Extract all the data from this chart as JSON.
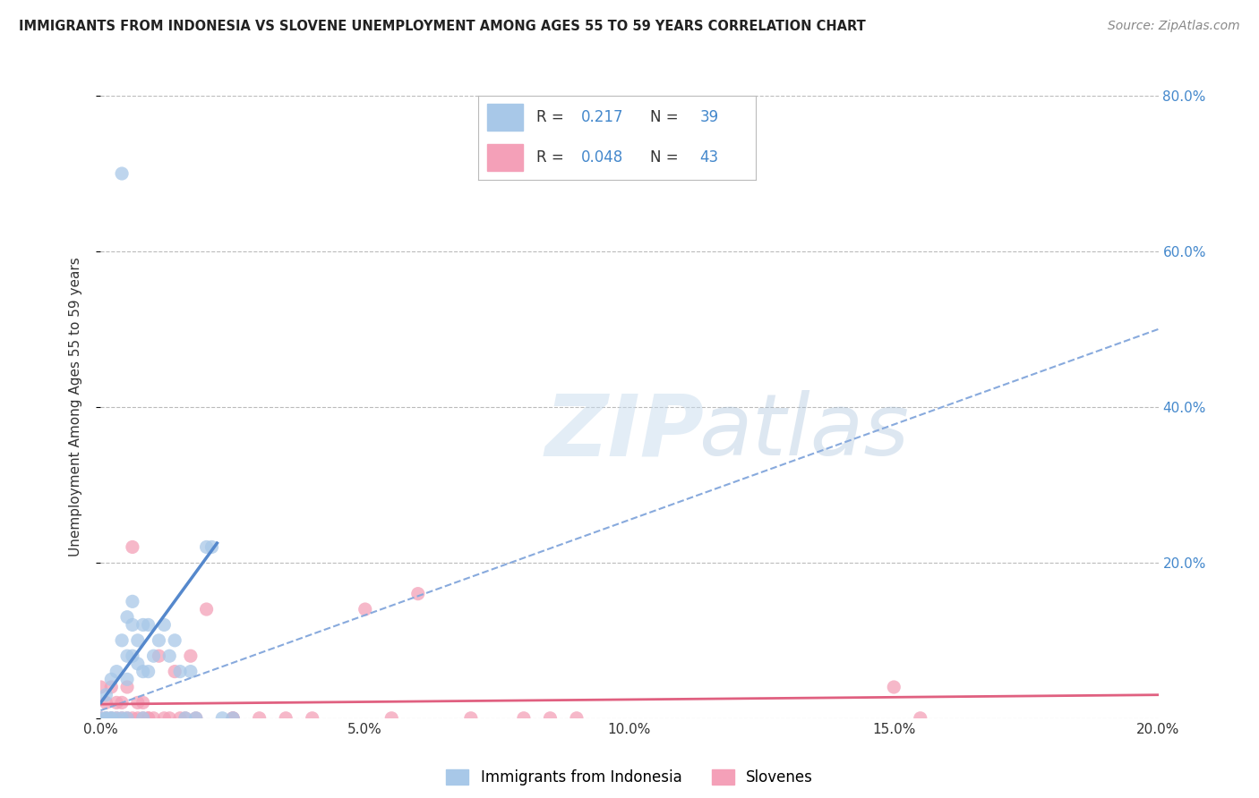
{
  "title": "IMMIGRANTS FROM INDONESIA VS SLOVENE UNEMPLOYMENT AMONG AGES 55 TO 59 YEARS CORRELATION CHART",
  "source": "Source: ZipAtlas.com",
  "ylabel": "Unemployment Among Ages 55 to 59 years",
  "xlim": [
    0.0,
    0.2
  ],
  "ylim": [
    0.0,
    0.8
  ],
  "xtick_vals": [
    0.0,
    0.05,
    0.1,
    0.15,
    0.2
  ],
  "ytick_vals": [
    0.0,
    0.2,
    0.4,
    0.6,
    0.8
  ],
  "ytick_labels_right": [
    "",
    "20.0%",
    "40.0%",
    "60.0%",
    "80.0%"
  ],
  "color_blue": "#A8C8E8",
  "color_pink": "#F4A0B8",
  "line_blue": "#5588CC",
  "line_blue_dash": "#88AADD",
  "line_pink": "#E06080",
  "background_color": "#FFFFFF",
  "grid_color": "#BBBBBB",
  "title_color": "#222222",
  "source_color": "#888888",
  "legend_text_color": "#4488CC",
  "legend_label_color": "#333333",
  "blue_scatter_x": [
    0.001,
    0.001,
    0.002,
    0.002,
    0.003,
    0.003,
    0.004,
    0.004,
    0.005,
    0.005,
    0.005,
    0.006,
    0.006,
    0.006,
    0.007,
    0.007,
    0.008,
    0.008,
    0.008,
    0.009,
    0.009,
    0.01,
    0.011,
    0.012,
    0.013,
    0.014,
    0.015,
    0.016,
    0.017,
    0.018,
    0.02,
    0.021,
    0.023,
    0.025,
    0.004,
    0.005,
    0.002,
    0.001,
    0.0
  ],
  "blue_scatter_y": [
    0.0,
    0.03,
    0.0,
    0.05,
    0.0,
    0.06,
    0.0,
    0.1,
    0.05,
    0.08,
    0.13,
    0.08,
    0.12,
    0.15,
    0.07,
    0.1,
    0.0,
    0.06,
    0.12,
    0.06,
    0.12,
    0.08,
    0.1,
    0.12,
    0.08,
    0.1,
    0.06,
    0.0,
    0.06,
    0.0,
    0.22,
    0.22,
    0.0,
    0.0,
    0.7,
    0.0,
    0.0,
    0.0,
    0.0
  ],
  "pink_scatter_x": [
    0.0,
    0.0,
    0.001,
    0.001,
    0.002,
    0.002,
    0.003,
    0.003,
    0.004,
    0.004,
    0.005,
    0.005,
    0.006,
    0.006,
    0.007,
    0.007,
    0.008,
    0.008,
    0.009,
    0.009,
    0.01,
    0.011,
    0.012,
    0.013,
    0.014,
    0.015,
    0.016,
    0.017,
    0.018,
    0.02,
    0.025,
    0.04,
    0.05,
    0.055,
    0.06,
    0.07,
    0.08,
    0.085,
    0.09,
    0.15,
    0.155,
    0.025,
    0.03,
    0.035
  ],
  "pink_scatter_y": [
    0.0,
    0.04,
    0.0,
    0.02,
    0.0,
    0.04,
    0.0,
    0.02,
    0.0,
    0.02,
    0.0,
    0.04,
    0.0,
    0.22,
    0.0,
    0.02,
    0.0,
    0.02,
    0.0,
    0.0,
    0.0,
    0.08,
    0.0,
    0.0,
    0.06,
    0.0,
    0.0,
    0.08,
    0.0,
    0.14,
    0.0,
    0.0,
    0.14,
    0.0,
    0.16,
    0.0,
    0.0,
    0.0,
    0.0,
    0.04,
    0.0,
    0.0,
    0.0,
    0.0
  ],
  "blue_solid_line_x": [
    0.0,
    0.022
  ],
  "blue_solid_line_y": [
    0.02,
    0.225
  ],
  "blue_dash_line_x": [
    0.0,
    0.2
  ],
  "blue_dash_line_y": [
    0.01,
    0.5
  ],
  "pink_solid_line_x": [
    0.0,
    0.2
  ],
  "pink_solid_line_y": [
    0.018,
    0.03
  ]
}
